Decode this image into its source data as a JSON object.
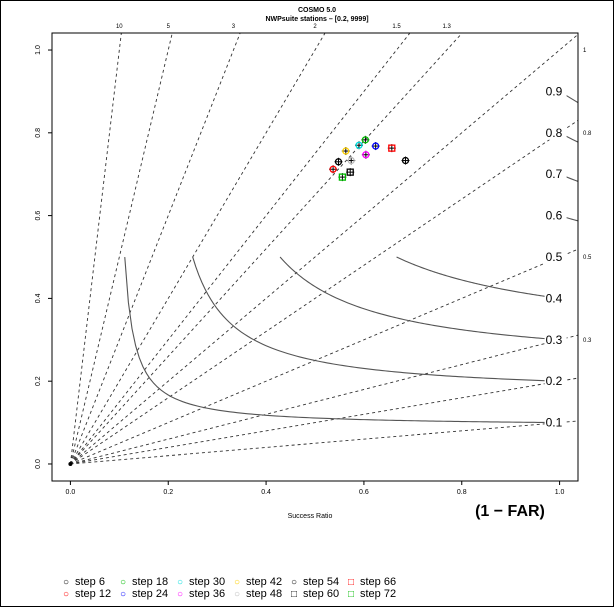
{
  "chart_data": {
    "type": "scatter",
    "title": "COSMO 5.0",
    "subtitle": "NWPsuite stations – [0.2, 9999]",
    "xlabel": "Success Ratio",
    "xlabel_note": "(1 − FAR)",
    "ylabel": "",
    "xlim": [
      0,
      1
    ],
    "ylim": [
      0,
      1
    ],
    "x_ticks": [
      "0.0",
      "0.2",
      "0.4",
      "0.6",
      "0.8",
      "1.0"
    ],
    "y_ticks": [
      "0.0",
      "0.2",
      "0.4",
      "0.6",
      "0.8",
      "1.0"
    ],
    "bias_lines": [
      {
        "value": 10,
        "label": "10",
        "side": "top"
      },
      {
        "value": 5,
        "label": "5",
        "side": "top"
      },
      {
        "value": 3,
        "label": "3",
        "side": "top"
      },
      {
        "value": 2,
        "label": "2",
        "side": "top"
      },
      {
        "value": 1.5,
        "label": "1.5",
        "side": "top"
      },
      {
        "value": 1.3,
        "label": "1.3",
        "side": "top"
      },
      {
        "value": 1,
        "label": "1",
        "side": "right"
      },
      {
        "value": 0.8,
        "label": "0.8",
        "side": "right"
      },
      {
        "value": 0.5,
        "label": "0.5",
        "side": "right"
      },
      {
        "value": 0.3,
        "label": "0.3",
        "side": "right"
      },
      {
        "value": 0.2,
        "label": "",
        "side": "none"
      },
      {
        "value": 0.1,
        "label": "",
        "side": "none"
      }
    ],
    "csi_levels": [
      {
        "value": 0.1,
        "label": "0.1"
      },
      {
        "value": 0.2,
        "label": "0.2"
      },
      {
        "value": 0.3,
        "label": "0.3"
      },
      {
        "value": 0.4,
        "label": "0.4"
      },
      {
        "value": 0.5,
        "label": "0.5"
      },
      {
        "value": 0.6,
        "label": "0.6"
      },
      {
        "value": 0.7,
        "label": "0.7"
      },
      {
        "value": 0.8,
        "label": "0.8"
      },
      {
        "value": 0.9,
        "label": "0.9"
      }
    ],
    "series": [
      {
        "name": "step 6",
        "symbol": "circle",
        "color": "#000000",
        "x": 0.548,
        "y": 0.73
      },
      {
        "name": "step 12",
        "symbol": "circle",
        "color": "#ff0000",
        "x": 0.537,
        "y": 0.712
      },
      {
        "name": "step 18",
        "symbol": "circle",
        "color": "#00bb00",
        "x": 0.603,
        "y": 0.783
      },
      {
        "name": "step 24",
        "symbol": "circle",
        "color": "#0000ff",
        "x": 0.624,
        "y": 0.768
      },
      {
        "name": "step 30",
        "symbol": "circle",
        "color": "#00dddd",
        "x": 0.59,
        "y": 0.77
      },
      {
        "name": "step 36",
        "symbol": "circle",
        "color": "#ff00ff",
        "x": 0.604,
        "y": 0.747
      },
      {
        "name": "step 42",
        "symbol": "circle",
        "color": "#ffd000",
        "x": 0.563,
        "y": 0.756
      },
      {
        "name": "step 48",
        "symbol": "circle",
        "color": "#bbbbbb",
        "x": 0.574,
        "y": 0.733
      },
      {
        "name": "step 54",
        "symbol": "circle",
        "color": "#000000",
        "x": 0.685,
        "y": 0.733
      },
      {
        "name": "step 60",
        "symbol": "square",
        "color": "#000000",
        "x": 0.572,
        "y": 0.705
      },
      {
        "name": "step 66",
        "symbol": "square",
        "color": "#ff0000",
        "x": 0.657,
        "y": 0.763
      },
      {
        "name": "step 72",
        "symbol": "square",
        "color": "#00bb00",
        "x": 0.556,
        "y": 0.693
      }
    ],
    "legend_position": "bottom"
  }
}
